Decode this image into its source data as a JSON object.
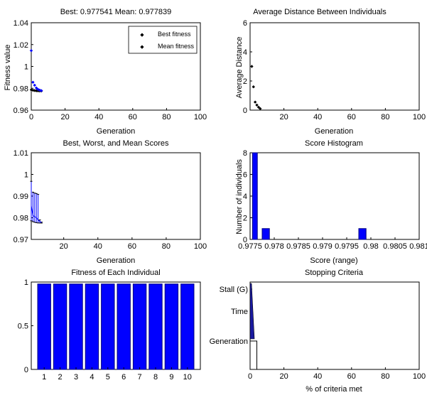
{
  "chart_data": [
    {
      "type": "scatter",
      "title": "Best: 0.977541 Mean: 0.977839",
      "xlabel": "Generation",
      "ylabel": "Fitness value",
      "xlim": [
        0,
        100
      ],
      "ylim": [
        0.96,
        1.04
      ],
      "xticks": [
        0,
        20,
        40,
        60,
        80,
        100
      ],
      "xtick_labels": [
        "0",
        "20",
        "40",
        "60",
        "80",
        "100"
      ],
      "yticks": [
        0.96,
        0.98,
        1.0,
        1.02,
        1.04
      ],
      "ytick_labels": [
        "0.96",
        "0.98",
        "1",
        "1.02",
        "1.04"
      ],
      "legend_position": "top-right",
      "series": [
        {
          "name": "Best fitness",
          "color": "#000000",
          "x": [
            0,
            1,
            2,
            3,
            4,
            5,
            6
          ],
          "y": [
            0.9786,
            0.9782,
            0.9779,
            0.9777,
            0.9776,
            0.97756,
            0.977541
          ]
        },
        {
          "name": "Mean fitness",
          "color": "#0000ff",
          "x": [
            0,
            1,
            2,
            3,
            4,
            5,
            6
          ],
          "y": [
            1.0145,
            0.9855,
            0.9828,
            0.9803,
            0.979,
            0.9783,
            0.977839
          ]
        }
      ]
    },
    {
      "type": "scatter",
      "title": "Average Distance Between Individuals",
      "xlabel": "Generation",
      "ylabel": "Average Distance",
      "xlim": [
        0,
        100
      ],
      "ylim": [
        0,
        6
      ],
      "xticks": [
        20,
        40,
        60,
        80,
        100
      ],
      "xtick_labels": [
        "20",
        "40",
        "60",
        "80",
        "100"
      ],
      "yticks": [
        0,
        2,
        4,
        6
      ],
      "ytick_labels": [
        "0",
        "2",
        "4",
        "6"
      ],
      "series": [
        {
          "color": "#000000",
          "x": [
            1,
            2,
            3,
            4,
            5,
            6
          ],
          "y": [
            3.0,
            1.6,
            0.55,
            0.35,
            0.2,
            0.1
          ]
        }
      ]
    },
    {
      "type": "errorbar",
      "title": "Best, Worst, and Mean Scores",
      "xlabel": "Generation",
      "xlim": [
        1,
        100
      ],
      "ylim": [
        0.97,
        1.01
      ],
      "xticks": [
        20,
        40,
        60,
        80,
        100
      ],
      "xtick_labels": [
        "20",
        "40",
        "60",
        "80",
        "100"
      ],
      "yticks": [
        0.97,
        0.98,
        0.99,
        1.0,
        1.01
      ],
      "ytick_labels": [
        "0.97",
        "0.98",
        "0.99",
        "1",
        "1.01"
      ],
      "x": [
        1,
        2,
        3,
        4,
        5,
        6,
        7
      ],
      "best": [
        0.9786,
        0.9782,
        0.9779,
        0.9777,
        0.9776,
        0.97756,
        0.977541
      ],
      "worst": [
        0.9968,
        0.9918,
        0.9914,
        0.9912,
        0.9908,
        0.979,
        0.978
      ],
      "mean": [
        0.9855,
        0.981,
        0.9805,
        0.98,
        0.979,
        0.9783,
        0.977839
      ]
    },
    {
      "type": "histogram",
      "title": "Score Histogram",
      "xlabel": "Score (range)",
      "ylabel": "Number of individuals",
      "xlim": [
        0.9775,
        0.981
      ],
      "ylim": [
        0,
        8
      ],
      "xticks": [
        0.9775,
        0.978,
        0.9785,
        0.979,
        0.9795,
        0.98,
        0.9805,
        0.981
      ],
      "xtick_labels": [
        "0.9775",
        "0.978",
        "0.9785",
        "0.979",
        "0.9795",
        "0.98",
        "0.9805",
        "0.981"
      ],
      "yticks": [
        0,
        2,
        4,
        6,
        8
      ],
      "ytick_labels": [
        "0",
        "2",
        "4",
        "6",
        "8"
      ],
      "bins": [
        {
          "x0": 0.97755,
          "x1": 0.97765,
          "count": 8
        },
        {
          "x0": 0.97765,
          "x1": 0.97775,
          "count": 0
        },
        {
          "x0": 0.97775,
          "x1": 0.9779,
          "count": 1
        },
        {
          "x0": 0.97975,
          "x1": 0.9799,
          "count": 1
        }
      ]
    },
    {
      "type": "bar",
      "title": "Fitness of Each Individual",
      "categories": [
        "1",
        "2",
        "3",
        "4",
        "5",
        "6",
        "7",
        "8",
        "9",
        "10"
      ],
      "values": [
        0.9776,
        0.9776,
        0.9776,
        0.9776,
        0.9776,
        0.9776,
        0.9776,
        0.9776,
        0.9776,
        0.9776
      ],
      "ylim": [
        0,
        1
      ],
      "yticks": [
        0,
        0.5,
        1
      ],
      "ytick_labels": [
        "0",
        "0.5",
        "1"
      ]
    },
    {
      "type": "barh",
      "title": "Stopping Criteria",
      "xlabel": "% of criteria met",
      "xlim": [
        0,
        100
      ],
      "xticks": [
        0,
        20,
        40,
        60,
        80,
        100
      ],
      "xtick_labels": [
        "0",
        "20",
        "40",
        "60",
        "80",
        "100"
      ],
      "categories": [
        "Stall (G)",
        "Time",
        "Generation"
      ],
      "values": [
        0,
        1.5,
        4
      ]
    }
  ],
  "colors": {
    "bar_fill": "#0000ff",
    "bar_edge": "#000080",
    "axis": "#000000",
    "background": "#ffffff"
  }
}
